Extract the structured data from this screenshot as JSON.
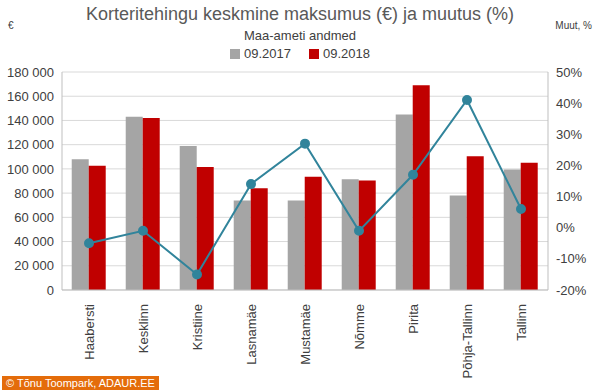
{
  "chart_data": {
    "type": "bar",
    "title": "Korteritehingu keskmine maksumus (€) ja muutus (%)",
    "subtitle": "Maa-ameti andmed",
    "y_label": "€",
    "y2_label": "Muut, %",
    "annotation": "© Tõnu Toompark, ADAUR.EE",
    "categories": [
      "Haabersti",
      "Kesklinn",
      "Kristiine",
      "Lasnamäe",
      "Mustamäe",
      "Nõmme",
      "Pirita",
      "Põhja-Tallinn",
      "Tallinn"
    ],
    "series": [
      {
        "name": "09.2017",
        "color": "#a5a5a5",
        "values": [
          108000,
          143000,
          119000,
          74000,
          74000,
          91500,
          145000,
          78000,
          99500
        ]
      },
      {
        "name": "09.2018",
        "color": "#c00000",
        "values": [
          102500,
          142000,
          101500,
          84000,
          93500,
          90500,
          169000,
          110500,
          105000
        ]
      },
      {
        "type": "line",
        "axis": "y2",
        "color": "#31849b",
        "marker": "circle",
        "values": [
          -5,
          -1,
          -15,
          14,
          27,
          -1,
          17,
          41,
          6
        ]
      }
    ],
    "ylim": [
      0,
      180000
    ],
    "yticks": [
      {
        "value": 0,
        "label": "0"
      },
      {
        "value": 20000,
        "label": "20 000"
      },
      {
        "value": 40000,
        "label": "40 000"
      },
      {
        "value": 60000,
        "label": "60 000"
      },
      {
        "value": 80000,
        "label": "80 000"
      },
      {
        "value": 100000,
        "label": "100 000"
      },
      {
        "value": 120000,
        "label": "120 000"
      },
      {
        "value": 140000,
        "label": "140 000"
      },
      {
        "value": 160000,
        "label": "160 000"
      },
      {
        "value": 180000,
        "label": "180 000"
      }
    ],
    "y2lim": [
      -20,
      50
    ],
    "y2ticks": [
      {
        "value": -20,
        "label": "-20%"
      },
      {
        "value": -10,
        "label": "-10%"
      },
      {
        "value": 0,
        "label": "0%"
      },
      {
        "value": 10,
        "label": "10%"
      },
      {
        "value": 20,
        "label": "20%"
      },
      {
        "value": 30,
        "label": "30%"
      },
      {
        "value": 40,
        "label": "40%"
      },
      {
        "value": 50,
        "label": "50%"
      }
    ],
    "grid": true,
    "legend": "top"
  }
}
